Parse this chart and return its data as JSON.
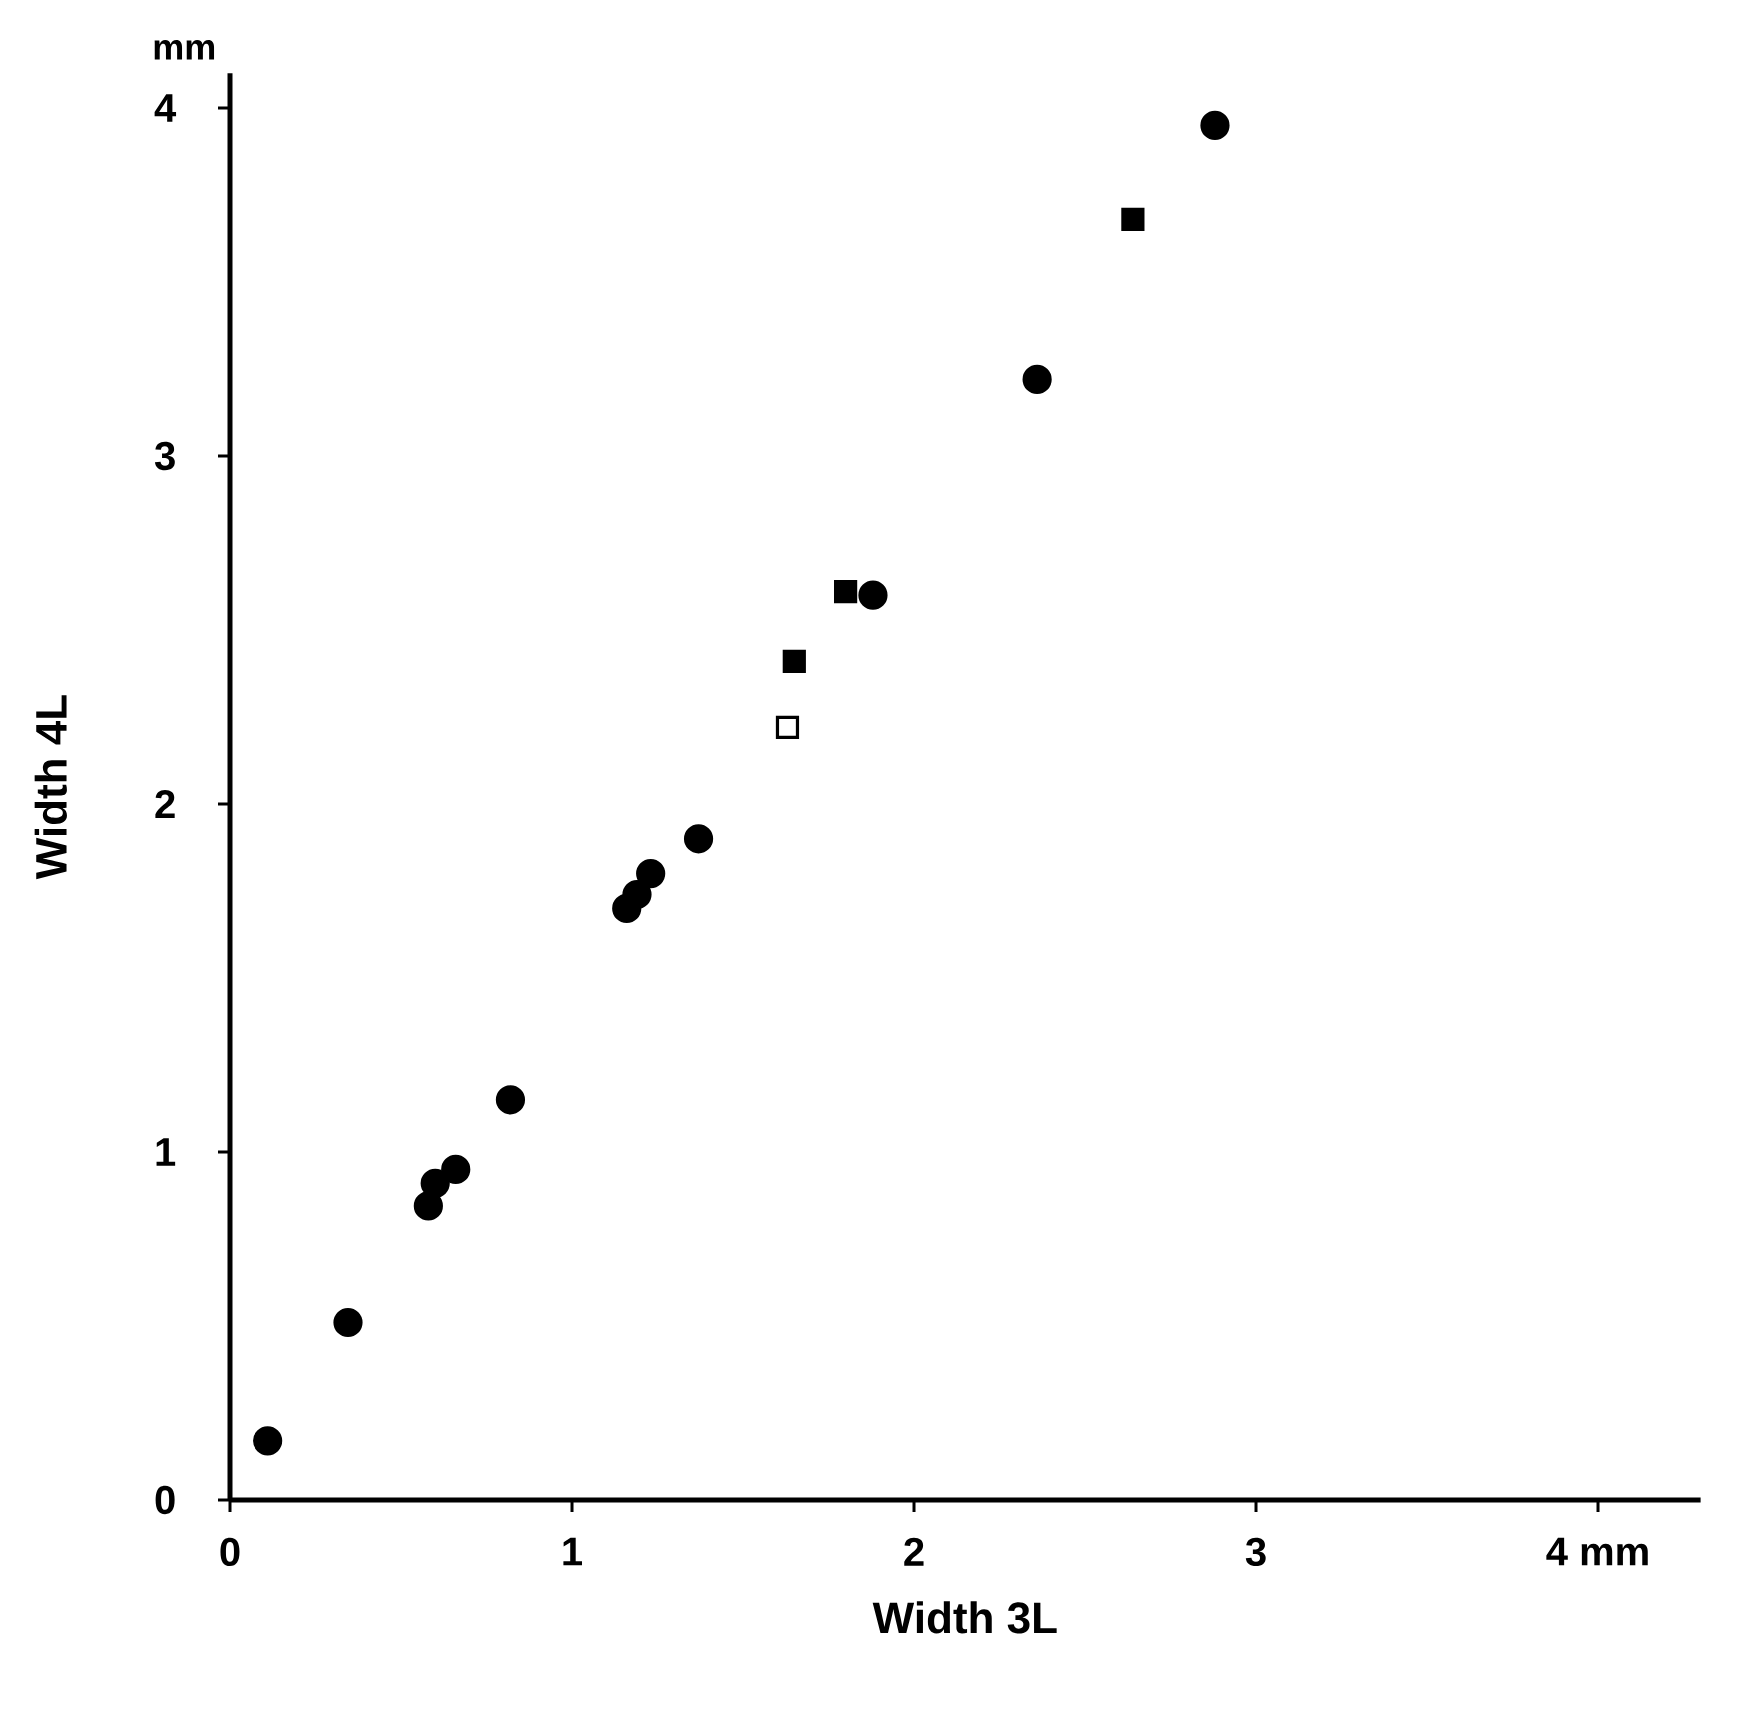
{
  "chart_data": {
    "type": "scatter",
    "xlabel": "Width 3L",
    "ylabel": "Width 4L",
    "annotations": [
      "mm"
    ],
    "xlim": [
      0,
      4.3
    ],
    "ylim": [
      0,
      4.1
    ],
    "xticks": [
      0,
      1,
      2,
      3,
      {
        "value": 4,
        "label": "4 mm"
      }
    ],
    "yticks": [
      0,
      1,
      2,
      3,
      4
    ],
    "grid": false,
    "series": [
      {
        "color": "#000000",
        "marker": "circle",
        "x": [
          0.11,
          0.345,
          0.58,
          0.6,
          0.66,
          0.82,
          1.16,
          1.19,
          1.23,
          1.37,
          1.88,
          2.36,
          2.88
        ],
        "values": [
          0.17,
          0.51,
          0.845,
          0.91,
          0.95,
          1.15,
          1.7,
          1.74,
          1.8,
          1.9,
          2.6,
          3.22,
          3.95
        ]
      },
      {
        "color": "#000000",
        "marker": "square",
        "x": [
          1.65,
          1.8,
          2.64
        ],
        "values": [
          2.41,
          2.61,
          3.68
        ]
      },
      {
        "color": "#ffffff",
        "marker": "square",
        "x": [
          1.63
        ],
        "values": [
          2.22
        ]
      }
    ]
  }
}
